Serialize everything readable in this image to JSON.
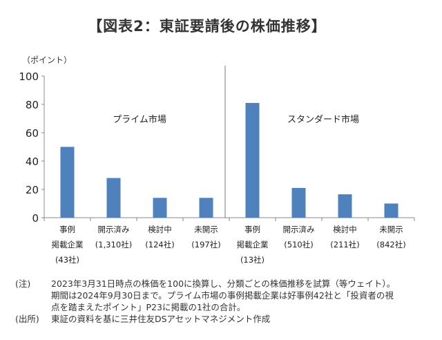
{
  "chart_data": {
    "type": "bar",
    "title": "【図表2：東証要請後の株価推移】",
    "ylabel": "（ポイント）",
    "ylim": [
      0,
      100
    ],
    "yticks": [
      0,
      20,
      40,
      60,
      80,
      100
    ],
    "groups": [
      {
        "name": "プライム市場",
        "categories": [
          [
            "事例",
            "掲載企業",
            "(43社)"
          ],
          [
            "開示済み",
            "(1,310社)"
          ],
          [
            "検討中",
            "(124社)"
          ],
          [
            "未開示",
            "(197社)"
          ]
        ],
        "values": [
          50,
          28,
          14,
          14
        ]
      },
      {
        "name": "スタンダード市場",
        "categories": [
          [
            "事例",
            "掲載企業",
            "(13社)"
          ],
          [
            "開示済み",
            "(510社)"
          ],
          [
            "検討中",
            "(211社)"
          ],
          [
            "未開示",
            "(842社)"
          ]
        ],
        "values": [
          81,
          21,
          16.5,
          10
        ]
      }
    ],
    "bar_color": "#4f81bd"
  },
  "notes": [
    {
      "label": "(注)",
      "lines": [
        "2023年3月31日時点の株価を100に換算し、分類ごとの株価推移を試算（等ウェイト）。",
        "期間は2024年9月30日まで。プライム市場の事例掲載企業は好事例42社と「投資者の視",
        "点を踏まえたポイント」P23に掲載の1社の合計。"
      ]
    },
    {
      "label": "(出所)",
      "lines": [
        "東証の資料を基に三井住友DSアセットマネジメント作成"
      ]
    }
  ]
}
